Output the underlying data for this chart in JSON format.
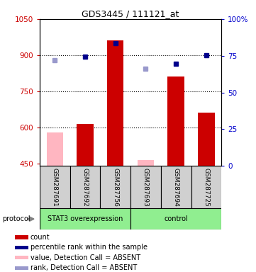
{
  "title": "GDS3445 / 111121_at",
  "samples": [
    "GSM287691",
    "GSM287692",
    "GSM287756",
    "GSM287693",
    "GSM287694",
    "GSM287725"
  ],
  "bar_values": [
    null,
    615,
    960,
    null,
    810,
    660
  ],
  "bar_absent_values": [
    580,
    null,
    null,
    465,
    null,
    null
  ],
  "rank_values": [
    null,
    895,
    950,
    null,
    865,
    900
  ],
  "rank_absent_values": [
    880,
    null,
    null,
    845,
    null,
    null
  ],
  "ylim_left": [
    440,
    1050
  ],
  "ylim_right": [
    0,
    100
  ],
  "yticks_left": [
    450,
    600,
    750,
    900,
    1050
  ],
  "yticks_right": [
    0,
    25,
    50,
    75,
    100
  ],
  "bar_color": "#cc0000",
  "bar_absent_color": "#ffb6c1",
  "rank_color": "#00008B",
  "rank_absent_color": "#9999cc",
  "sample_box_color": "#d0d0d0",
  "group1_label": "STAT3 overexpression",
  "group2_label": "control",
  "group_color": "#90EE90",
  "protocol_label": "protocol",
  "legend_items": [
    {
      "label": "count",
      "color": "#cc0000"
    },
    {
      "label": "percentile rank within the sample",
      "color": "#00008B"
    },
    {
      "label": "value, Detection Call = ABSENT",
      "color": "#ffb6c1"
    },
    {
      "label": "rank, Detection Call = ABSENT",
      "color": "#9999cc"
    }
  ],
  "title_fontsize": 9,
  "axis_fontsize": 7.5,
  "sample_fontsize": 6.5,
  "legend_fontsize": 7,
  "group_fontsize": 7
}
